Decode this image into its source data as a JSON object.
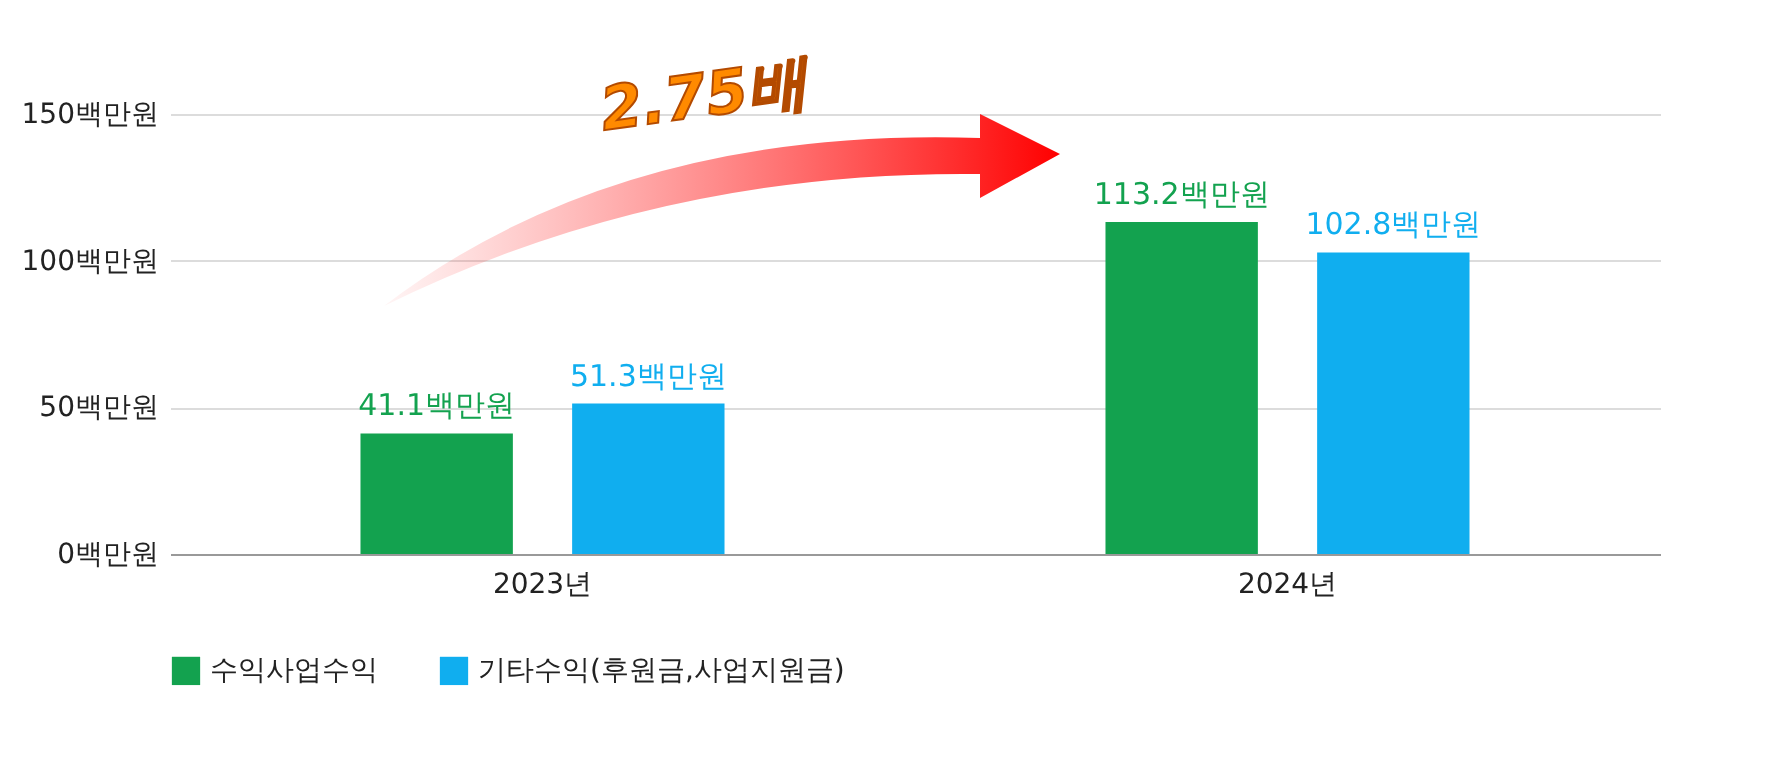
{
  "chart_data": {
    "type": "bar",
    "categories": [
      "2023년",
      "2024년"
    ],
    "series": [
      {
        "name": "수익사업수익",
        "color": "#13a24f",
        "values": [
          41.1,
          113.2
        ],
        "value_labels": [
          "41.1백만원",
          "113.2백만원"
        ]
      },
      {
        "name": "기타수익(후원금,사업지원금)",
        "color": "#10aeef",
        "values": [
          51.3,
          102.8
        ],
        "value_labels": [
          "51.3백만원",
          "102.8백만원"
        ]
      }
    ],
    "ylim": [
      0,
      150
    ],
    "yticks": [
      {
        "value": 0,
        "label": "0백만원"
      },
      {
        "value": 50,
        "label": "50백만원"
      },
      {
        "value": 100,
        "label": "100백만원"
      },
      {
        "value": 150,
        "label": "150백만원"
      }
    ],
    "grid": "y",
    "legend": "bottom",
    "annotations": [
      "2.75배"
    ]
  }
}
